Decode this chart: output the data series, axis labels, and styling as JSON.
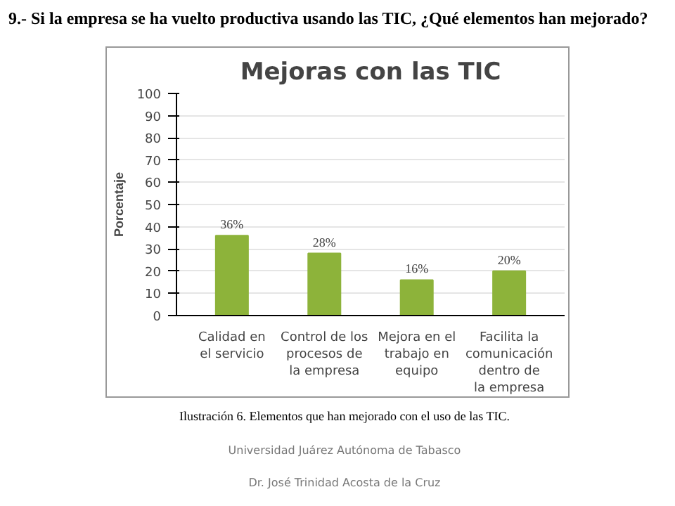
{
  "chart_data": {
    "type": "bar",
    "title": "Mejoras con las TIC",
    "ylabel": "Porcentaje",
    "categories": [
      "Calidad en\nel servicio",
      "Control de los\nprocesos de\nla empresa",
      "Mejora en el\ntrabajo en\nequipo",
      "Facilita la\ncomunicación\ndentro de\nla empresa"
    ],
    "values": [
      36,
      28,
      16,
      20
    ],
    "color": "#8db33a",
    "value_labels": [
      "36%",
      "28%",
      "16%",
      "20%"
    ],
    "ylim": [
      0,
      100
    ],
    "yticks": [
      0,
      10,
      20,
      30,
      40,
      50,
      60,
      70,
      80,
      90,
      100
    ],
    "grid": "y",
    "annotations": [
      "9.- Si la empresa se ha vuelto productiva usando las TIC, ¿Qué elementos han mejorado?",
      "Ilustración 6.  Elementos que han mejorado con el uso de las TIC.",
      "Universidad Juárez Autónoma de Tabasco",
      "Dr. José Trinidad Acosta de la Cruz"
    ]
  }
}
